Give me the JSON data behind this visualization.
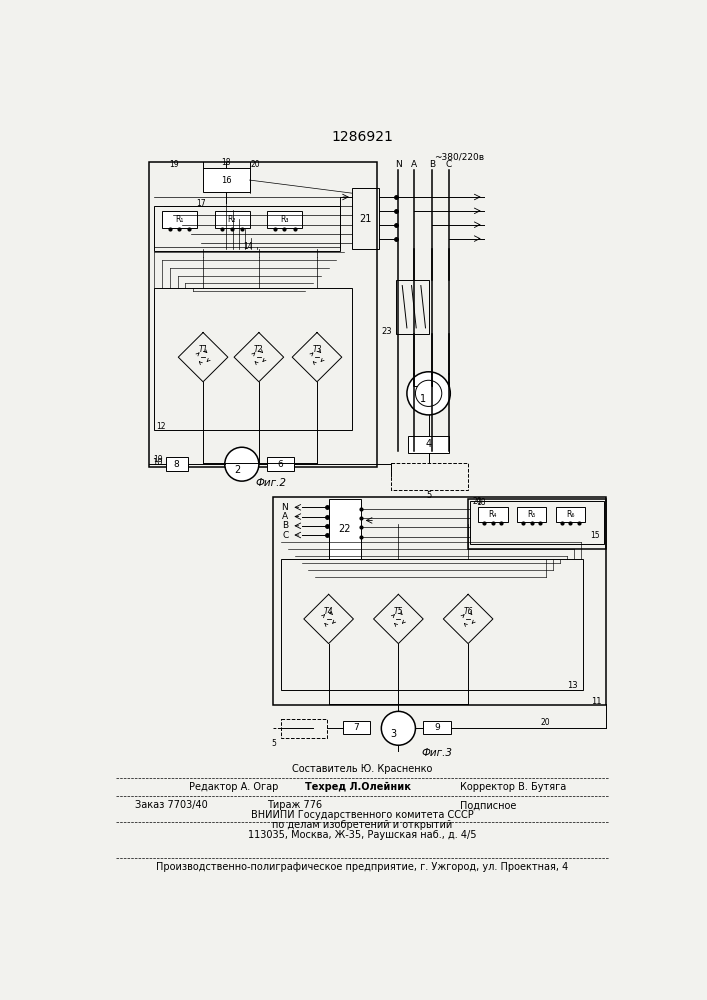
{
  "title": "1286921",
  "title_fontsize": 10,
  "background_color": "#f2f2ee",
  "fig2_label": "Фиг.2",
  "fig3_label": "Фиг.3",
  "voltage_label": "~380/220в",
  "footer_line0": "Составитель Ю. Красненко",
  "footer_line1a": "Редактор А. Огар",
  "footer_line1b": "Техред Л.Олейник",
  "footer_line1c": "Корректор В. Бутяга",
  "footer_line2a": "Заказ 7703/40",
  "footer_line2b": "Тираж 776",
  "footer_line2c": "Подписное",
  "footer_line3": "ВНИИПИ Государственного комитета СССР",
  "footer_line4": "по делам изобретений и открытий",
  "footer_line5": "113035, Москва, Ж-35, Раушская наб., д. 4/5",
  "footer_line6": "Производственно-полиграфическое предприятие, г. Ужгород, ул. Проектная, 4"
}
